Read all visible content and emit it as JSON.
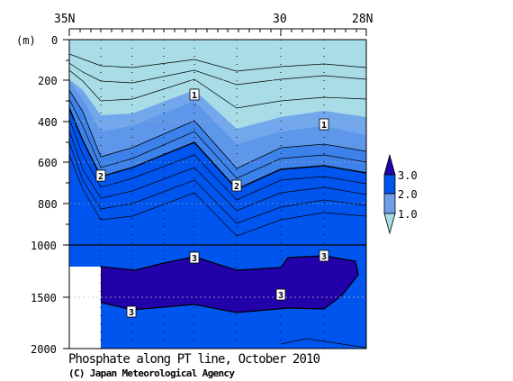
{
  "chart_data": {
    "type": "contour",
    "title": "Phosphate along PT line, October 2010",
    "credit": "(C) Japan Meteorological Agency",
    "x_axis": {
      "ticks": [
        {
          "lat": 35,
          "label": "35N"
        },
        {
          "lat": 30,
          "label": "30"
        },
        {
          "lat": 28,
          "label": "28N"
        }
      ],
      "range": [
        35,
        28
      ]
    },
    "y_axis": {
      "unit_label": "(m)",
      "upper_ticks": [
        0,
        200,
        400,
        600,
        800,
        1000
      ],
      "lower_ticks": [
        1500,
        2000
      ],
      "upper_range": [
        0,
        1000
      ],
      "lower_range": [
        1000,
        2000
      ]
    },
    "colorbar": {
      "labels": [
        {
          "value": 3.0,
          "label": "3.0"
        },
        {
          "value": 2.0,
          "label": "2.0"
        },
        {
          "value": 1.0,
          "label": "1.0"
        }
      ],
      "colors": [
        "#2200aa",
        "#0055ee",
        "#3d82ea",
        "#72a7ec",
        "#a8dde8"
      ]
    },
    "contour_labels": [
      {
        "text": "1",
        "lat": 31.8,
        "depth": 270
      },
      {
        "text": "1",
        "lat": 29.3,
        "depth": 415
      },
      {
        "text": "2",
        "lat": 34.3,
        "depth": 670
      },
      {
        "text": "2",
        "lat": 31.0,
        "depth": 710
      },
      {
        "text": "3",
        "lat": 31.8,
        "depth": 1070
      },
      {
        "text": "3",
        "lat": 29.3,
        "depth": 1050
      },
      {
        "text": "3",
        "lat": 30.0,
        "depth": 1480
      },
      {
        "text": "3",
        "lat": 33.5,
        "depth": 1570
      }
    ],
    "series": [
      {
        "value": 1.0,
        "points": [
          [
            35.0,
            250
          ],
          [
            34.5,
            450
          ],
          [
            34.0,
            440
          ],
          [
            33.3,
            430
          ],
          [
            31.8,
            300
          ],
          [
            31.0,
            520
          ],
          [
            30.0,
            450
          ],
          [
            28.0,
            380
          ]
        ]
      },
      {
        "value": 2.0,
        "points": [
          [
            35.0,
            450
          ],
          [
            34.5,
            640
          ],
          [
            34.0,
            660
          ],
          [
            33.3,
            610
          ],
          [
            31.8,
            500
          ],
          [
            31.0,
            680
          ],
          [
            30.0,
            630
          ],
          [
            29.3,
            610
          ],
          [
            28.0,
            650
          ]
        ]
      },
      {
        "value": 3.0,
        "points": [
          [
            34.3,
            1080
          ],
          [
            33.5,
            1220
          ],
          [
            32.5,
            1120
          ],
          [
            31.8,
            1060
          ],
          [
            31.0,
            1250
          ],
          [
            30.0,
            1200
          ],
          [
            29.8,
            1070
          ],
          [
            29.0,
            1060
          ],
          [
            28.2,
            1100
          ],
          [
            28.8,
            1450
          ],
          [
            29.3,
            1550
          ],
          [
            31.0,
            1620
          ],
          [
            33.5,
            1580
          ],
          [
            34.3,
            1550
          ]
        ]
      }
    ],
    "stations_lat": [
      35.0,
      34.3,
      33.7,
      33.1,
      31.8,
      31.0,
      30.0,
      29.3,
      28.0
    ]
  }
}
